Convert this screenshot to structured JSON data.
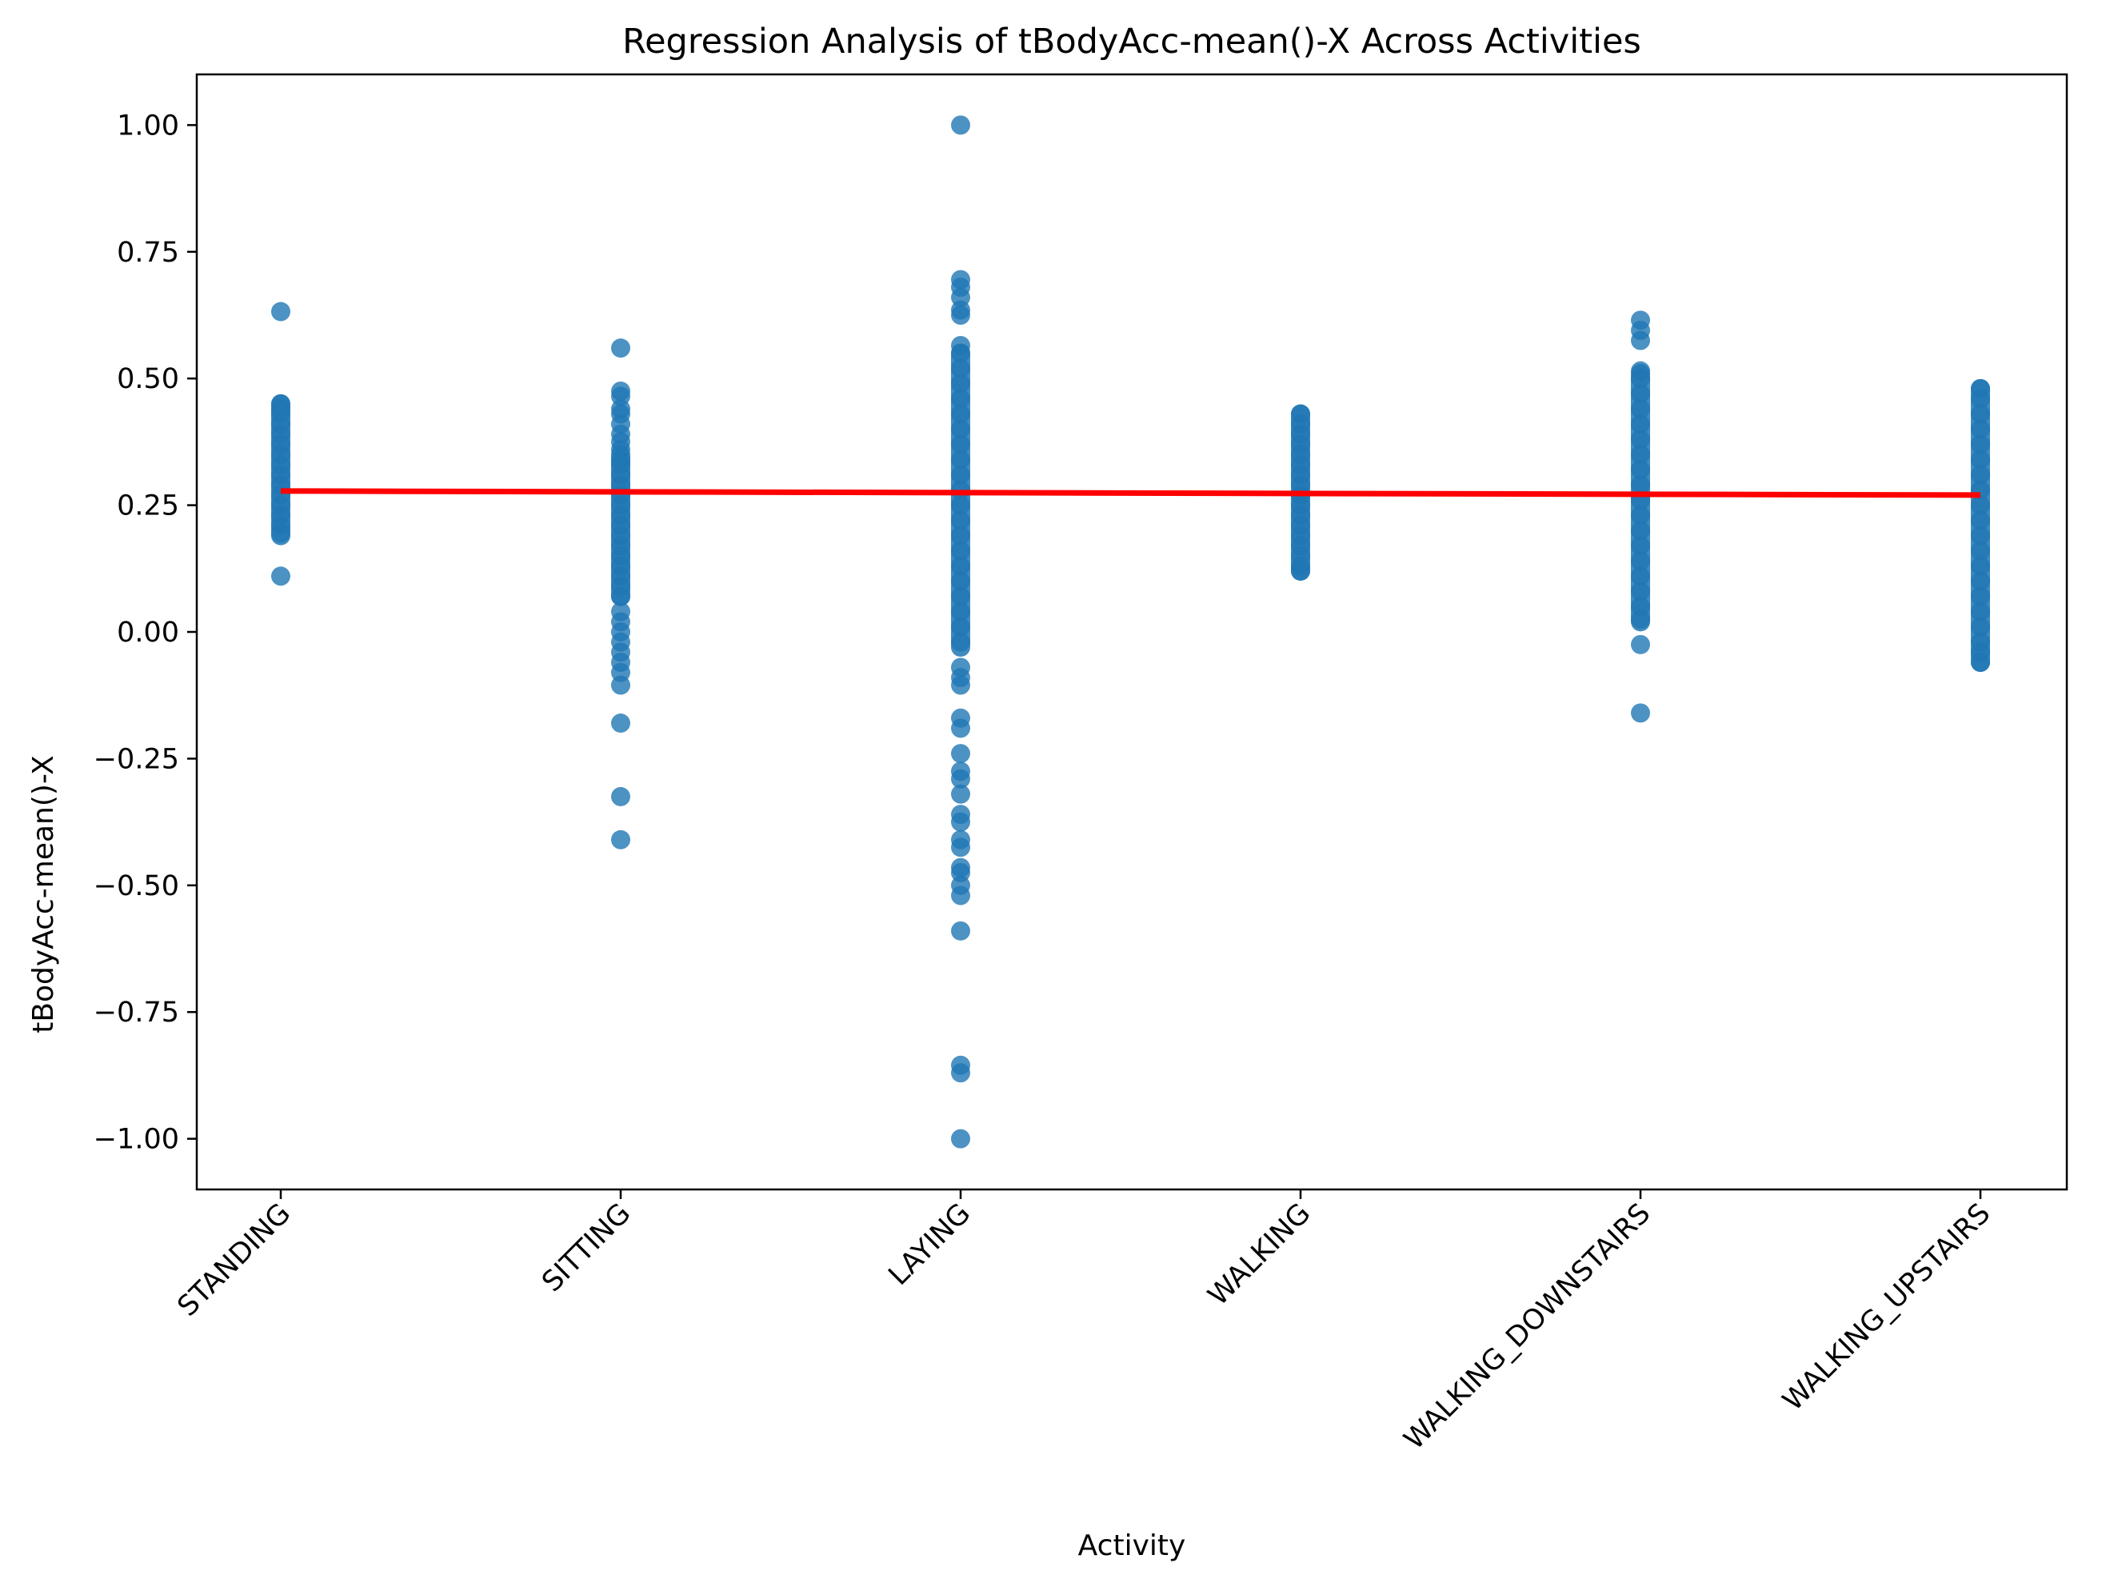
{
  "chart_data": {
    "type": "scatter",
    "title": "Regression Analysis of tBodyAcc-mean()-X Across Activities",
    "xlabel": "Activity",
    "ylabel": "tBodyAcc-mean()-X",
    "categories": [
      "STANDING",
      "SITTING",
      "LAYING",
      "WALKING",
      "WALKING_DOWNSTAIRS",
      "WALKING_UPSTAIRS"
    ],
    "ylim": [
      -1.1,
      1.1
    ],
    "yticks": [
      {
        "value": -1.0,
        "label": "−1.00"
      },
      {
        "value": -0.75,
        "label": "−0.75"
      },
      {
        "value": -0.5,
        "label": "−0.50"
      },
      {
        "value": -0.25,
        "label": "−0.25"
      },
      {
        "value": 0.0,
        "label": "0.00"
      },
      {
        "value": 0.25,
        "label": "0.25"
      },
      {
        "value": 0.5,
        "label": "0.50"
      },
      {
        "value": 0.75,
        "label": "0.75"
      },
      {
        "value": 1.0,
        "label": "1.00"
      }
    ],
    "grid": false,
    "legend": "none",
    "point_color": "#1f77b4",
    "line_color": "#ff0000",
    "series": [
      {
        "category": "STANDING",
        "range": [
          0.19,
          0.45
        ],
        "points": [
          0.632,
          0.45,
          0.44,
          0.43,
          0.41,
          0.39,
          0.37,
          0.35,
          0.33,
          0.31,
          0.29,
          0.27,
          0.25,
          0.23,
          0.21,
          0.195,
          0.11
        ]
      },
      {
        "category": "SITTING",
        "range": [
          0.07,
          0.35
        ],
        "points": [
          0.56,
          0.475,
          0.465,
          0.44,
          0.43,
          0.41,
          0.39,
          0.375,
          0.36,
          0.34,
          0.33,
          0.31,
          0.29,
          0.27,
          0.25,
          0.23,
          0.21,
          0.19,
          0.17,
          0.15,
          0.13,
          0.11,
          0.09,
          0.07,
          0.04,
          0.02,
          0.0,
          -0.02,
          -0.04,
          -0.06,
          -0.08,
          -0.105,
          -0.18,
          -0.325,
          -0.41
        ]
      },
      {
        "category": "LAYING",
        "range": [
          -0.03,
          0.55
        ],
        "points": [
          1.0,
          0.695,
          0.68,
          0.66,
          0.635,
          0.625,
          0.565,
          0.55,
          0.52,
          0.49,
          0.46,
          0.43,
          0.4,
          0.37,
          0.34,
          0.31,
          0.28,
          0.25,
          0.22,
          0.19,
          0.16,
          0.13,
          0.1,
          0.07,
          0.04,
          0.01,
          -0.02,
          -0.07,
          -0.09,
          -0.105,
          -0.17,
          -0.19,
          -0.24,
          -0.275,
          -0.29,
          -0.32,
          -0.36,
          -0.375,
          -0.41,
          -0.425,
          -0.465,
          -0.475,
          -0.5,
          -0.52,
          -0.59,
          -0.855,
          -0.87,
          -1.0
        ]
      },
      {
        "category": "WALKING",
        "range": [
          0.12,
          0.43
        ],
        "points": [
          0.43,
          0.41,
          0.39,
          0.37,
          0.35,
          0.33,
          0.31,
          0.29,
          0.27,
          0.25,
          0.23,
          0.21,
          0.19,
          0.17,
          0.15,
          0.13,
          0.12
        ]
      },
      {
        "category": "WALKING_DOWNSTAIRS",
        "range": [
          0.02,
          0.51
        ],
        "points": [
          0.615,
          0.595,
          0.575,
          0.515,
          0.5,
          0.47,
          0.44,
          0.41,
          0.38,
          0.35,
          0.32,
          0.29,
          0.26,
          0.23,
          0.2,
          0.17,
          0.14,
          0.11,
          0.08,
          0.05,
          0.025,
          -0.025,
          -0.16
        ]
      },
      {
        "category": "WALKING_UPSTAIRS",
        "range": [
          -0.06,
          0.48
        ],
        "points": [
          0.48,
          0.46,
          0.43,
          0.4,
          0.37,
          0.34,
          0.31,
          0.28,
          0.25,
          0.22,
          0.19,
          0.16,
          0.13,
          0.1,
          0.07,
          0.04,
          0.01,
          -0.02,
          -0.04,
          -0.06
        ]
      }
    ],
    "regression_line": {
      "start": 0.278,
      "end": 0.27
    }
  }
}
